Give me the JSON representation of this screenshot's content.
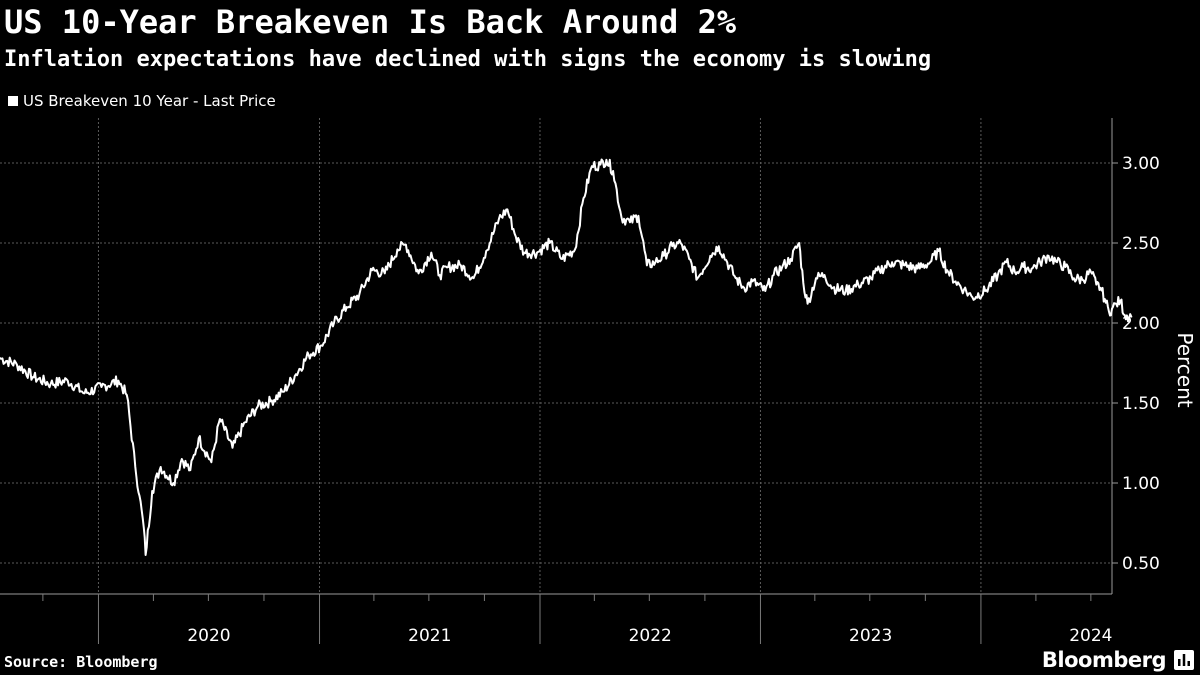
{
  "header": {
    "title": "US 10-Year Breakeven Is Back Around 2%",
    "subtitle": "Inflation expectations have declined with signs the economy is slowing"
  },
  "legend": {
    "label": "US Breakeven 10 Year - Last Price",
    "color": "#ffffff"
  },
  "footer": {
    "source": "Source: Bloomberg",
    "brand": "Bloomberg",
    "brand_icon": "chart-icon"
  },
  "colors": {
    "background": "#000000",
    "line": "#ffffff",
    "grid": "#5a5a5a",
    "text": "#ffffff"
  },
  "chart_data": {
    "type": "line",
    "title": "US 10-Year Breakeven Is Back Around 2%",
    "subtitle": "Inflation expectations have declined with signs the economy is slowing",
    "xlabel": "",
    "ylabel": "Percent",
    "x_range": [
      "2019-07-22",
      "2024-08-05"
    ],
    "ylim": [
      0.5,
      3.0
    ],
    "y_ticks": [
      0.5,
      1.0,
      1.5,
      2.0,
      2.5,
      3.0
    ],
    "y_tick_labels": [
      "0.50",
      "1.00",
      "1.50",
      "2.00",
      "2.50",
      "3.00"
    ],
    "year_labels": [
      "2020",
      "2021",
      "2022",
      "2023",
      "2024"
    ],
    "grid": true,
    "legend_position": "top-left",
    "series": [
      {
        "name": "US Breakeven 10 Year - Last Price",
        "points": [
          [
            "2019-07-22",
            1.78
          ],
          [
            "2019-08-19",
            1.74
          ],
          [
            "2019-09-16",
            1.66
          ],
          [
            "2019-10-14",
            1.62
          ],
          [
            "2019-11-11",
            1.64
          ],
          [
            "2019-12-09",
            1.56
          ],
          [
            "2020-01-06",
            1.6
          ],
          [
            "2020-02-03",
            1.64
          ],
          [
            "2020-02-17",
            1.55
          ],
          [
            "2020-03-02",
            1.1
          ],
          [
            "2020-03-09",
            0.92
          ],
          [
            "2020-03-16",
            0.72
          ],
          [
            "2020-03-19",
            0.55
          ],
          [
            "2020-03-30",
            0.95
          ],
          [
            "2020-04-13",
            1.1
          ],
          [
            "2020-05-04",
            1.0
          ],
          [
            "2020-05-18",
            1.15
          ],
          [
            "2020-06-01",
            1.08
          ],
          [
            "2020-06-15",
            1.28
          ],
          [
            "2020-07-06",
            1.13
          ],
          [
            "2020-07-20",
            1.4
          ],
          [
            "2020-08-10",
            1.22
          ],
          [
            "2020-08-31",
            1.38
          ],
          [
            "2020-09-21",
            1.48
          ],
          [
            "2020-10-12",
            1.51
          ],
          [
            "2020-11-02",
            1.57
          ],
          [
            "2020-11-23",
            1.68
          ],
          [
            "2020-12-14",
            1.8
          ],
          [
            "2021-01-04",
            1.86
          ],
          [
            "2021-01-25",
            2.0
          ],
          [
            "2021-02-15",
            2.1
          ],
          [
            "2021-03-08",
            2.18
          ],
          [
            "2021-03-29",
            2.33
          ],
          [
            "2021-04-19",
            2.31
          ],
          [
            "2021-05-10",
            2.46
          ],
          [
            "2021-05-24",
            2.49
          ],
          [
            "2021-06-14",
            2.31
          ],
          [
            "2021-07-05",
            2.44
          ],
          [
            "2021-07-19",
            2.3
          ],
          [
            "2021-08-02",
            2.35
          ],
          [
            "2021-08-23",
            2.36
          ],
          [
            "2021-09-13",
            2.28
          ],
          [
            "2021-10-04",
            2.45
          ],
          [
            "2021-10-25",
            2.65
          ],
          [
            "2021-11-08",
            2.71
          ],
          [
            "2021-11-22",
            2.54
          ],
          [
            "2021-12-06",
            2.44
          ],
          [
            "2021-12-27",
            2.44
          ],
          [
            "2022-01-17",
            2.5
          ],
          [
            "2022-02-07",
            2.4
          ],
          [
            "2022-02-28",
            2.46
          ],
          [
            "2022-03-14",
            2.78
          ],
          [
            "2022-03-28",
            2.98
          ],
          [
            "2022-04-11",
            2.99
          ],
          [
            "2022-04-21",
            3.02
          ],
          [
            "2022-05-02",
            2.95
          ],
          [
            "2022-05-16",
            2.66
          ],
          [
            "2022-05-30",
            2.63
          ],
          [
            "2022-06-13",
            2.67
          ],
          [
            "2022-06-27",
            2.36
          ],
          [
            "2022-07-11",
            2.38
          ],
          [
            "2022-07-25",
            2.42
          ],
          [
            "2022-08-08",
            2.48
          ],
          [
            "2022-08-22",
            2.5
          ],
          [
            "2022-09-05",
            2.4
          ],
          [
            "2022-09-19",
            2.28
          ],
          [
            "2022-10-10",
            2.42
          ],
          [
            "2022-10-24",
            2.48
          ],
          [
            "2022-11-07",
            2.38
          ],
          [
            "2022-11-21",
            2.28
          ],
          [
            "2022-12-05",
            2.22
          ],
          [
            "2022-12-19",
            2.26
          ],
          [
            "2023-01-09",
            2.2
          ],
          [
            "2023-01-23",
            2.3
          ],
          [
            "2023-02-06",
            2.35
          ],
          [
            "2023-02-20",
            2.4
          ],
          [
            "2023-03-06",
            2.5
          ],
          [
            "2023-03-13",
            2.25
          ],
          [
            "2023-03-20",
            2.12
          ],
          [
            "2023-04-03",
            2.28
          ],
          [
            "2023-04-17",
            2.3
          ],
          [
            "2023-05-01",
            2.22
          ],
          [
            "2023-05-22",
            2.2
          ],
          [
            "2023-06-12",
            2.24
          ],
          [
            "2023-07-03",
            2.28
          ],
          [
            "2023-07-17",
            2.33
          ],
          [
            "2023-08-07",
            2.38
          ],
          [
            "2023-08-28",
            2.36
          ],
          [
            "2023-09-18",
            2.34
          ],
          [
            "2023-10-09",
            2.38
          ],
          [
            "2023-10-23",
            2.45
          ],
          [
            "2023-11-06",
            2.33
          ],
          [
            "2023-11-20",
            2.26
          ],
          [
            "2023-12-04",
            2.21
          ],
          [
            "2023-12-18",
            2.16
          ],
          [
            "2024-01-08",
            2.2
          ],
          [
            "2024-01-29",
            2.3
          ],
          [
            "2024-02-12",
            2.38
          ],
          [
            "2024-02-26",
            2.32
          ],
          [
            "2024-03-11",
            2.35
          ],
          [
            "2024-03-25",
            2.34
          ],
          [
            "2024-04-08",
            2.38
          ],
          [
            "2024-04-22",
            2.42
          ],
          [
            "2024-05-06",
            2.38
          ],
          [
            "2024-05-20",
            2.35
          ],
          [
            "2024-06-03",
            2.28
          ],
          [
            "2024-06-17",
            2.27
          ],
          [
            "2024-07-01",
            2.32
          ],
          [
            "2024-07-10",
            2.24
          ],
          [
            "2024-07-17",
            2.22
          ],
          [
            "2024-07-24",
            2.15
          ],
          [
            "2024-07-31",
            2.07
          ],
          [
            "2024-08-05",
            2.09
          ],
          [
            "2024-08-12",
            2.12
          ],
          [
            "2024-08-19",
            2.14
          ],
          [
            "2024-08-26",
            2.05
          ],
          [
            "2024-09-06",
            2.04
          ]
        ]
      }
    ]
  }
}
